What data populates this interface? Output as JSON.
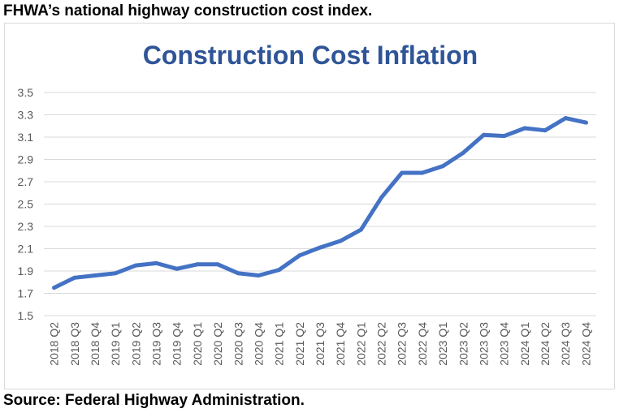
{
  "header": {
    "text": "FHWA’s national highway construction cost index."
  },
  "footer": {
    "text": "Source: Federal Highway Administration."
  },
  "colors": {
    "line": "#4472c4",
    "title": "#2f5597",
    "grid": "#d9d9d9",
    "axis_text": "#595959"
  },
  "chart_data": {
    "type": "line",
    "title": "Construction Cost Inflation",
    "xlabel": "",
    "ylabel": "",
    "ylim": [
      1.5,
      3.5
    ],
    "yticks": [
      "3.5",
      "3.3",
      "3.1",
      "2.9",
      "2.7",
      "2.5",
      "2.3",
      "2.1",
      "1.9",
      "1.7",
      "1.5"
    ],
    "grid": true,
    "legend": "none",
    "categories": [
      "2018 Q2",
      "2018 Q3",
      "2018 Q4",
      "2019 Q1",
      "2019 Q2",
      "2019 Q3",
      "2019 Q4",
      "2020 Q1",
      "2020 Q2",
      "2020 Q3",
      "2020 Q4",
      "2021 Q1",
      "2021 Q2",
      "2021 Q3",
      "2021 Q4",
      "2022 Q1",
      "2022 Q2",
      "2022 Q3",
      "2022 Q4",
      "2023 Q1",
      "2023 Q2",
      "2023 Q3",
      "2023 Q4",
      "2024 Q1",
      "2024 Q2",
      "2024 Q3",
      "2024 Q4"
    ],
    "series": [
      {
        "values": [
          1.75,
          1.84,
          1.86,
          1.88,
          1.95,
          1.97,
          1.92,
          1.96,
          1.96,
          1.88,
          1.86,
          1.91,
          2.04,
          2.11,
          2.17,
          2.27,
          2.56,
          2.78,
          2.78,
          2.84,
          2.96,
          3.12,
          3.11,
          3.18,
          3.16,
          3.27,
          3.23
        ]
      }
    ]
  }
}
